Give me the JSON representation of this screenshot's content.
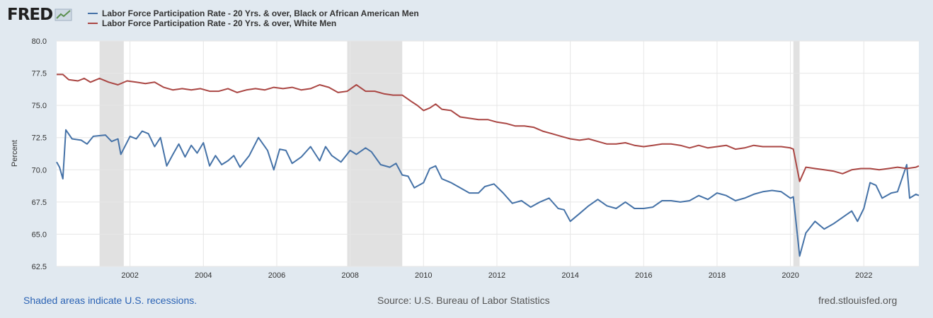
{
  "header": {
    "logo_text": "FRED"
  },
  "colors": {
    "series_black": "#4572a7",
    "series_white": "#aa4643",
    "recession": "#e1e1e1",
    "grid": "#e6e6e6"
  },
  "footer": {
    "recessions_note": "Shaded areas indicate U.S. recessions.",
    "source": "Source: U.S. Bureau of Labor Statistics",
    "site": "fred.stlouisfed.org"
  },
  "chart_data": {
    "type": "line",
    "ylabel": "Percent",
    "ylim": [
      62.5,
      80.0
    ],
    "xlim": [
      2000.0,
      2023.5
    ],
    "y_ticks": [
      "62.5",
      "65.0",
      "67.5",
      "70.0",
      "72.5",
      "75.0",
      "77.5",
      "80.0"
    ],
    "x_ticks": [
      "2002",
      "2004",
      "2006",
      "2008",
      "2010",
      "2012",
      "2014",
      "2016",
      "2018",
      "2020",
      "2022"
    ],
    "grid": true,
    "recessions": [
      [
        2001.17,
        2001.83
      ],
      [
        2007.92,
        2009.42
      ],
      [
        2020.08,
        2020.25
      ]
    ],
    "series": [
      {
        "name": "Labor Force Participation Rate - 20 Yrs. & over, Black or African American Men",
        "points": [
          [
            2000.0,
            70.6
          ],
          [
            2000.08,
            70.2
          ],
          [
            2000.17,
            69.3
          ],
          [
            2000.25,
            73.1
          ],
          [
            2000.42,
            72.4
          ],
          [
            2000.67,
            72.3
          ],
          [
            2000.83,
            72.0
          ],
          [
            2001.0,
            72.6
          ],
          [
            2001.33,
            72.7
          ],
          [
            2001.5,
            72.2
          ],
          [
            2001.67,
            72.4
          ],
          [
            2001.75,
            71.2
          ],
          [
            2002.0,
            72.6
          ],
          [
            2002.17,
            72.4
          ],
          [
            2002.33,
            73.0
          ],
          [
            2002.5,
            72.8
          ],
          [
            2002.67,
            71.8
          ],
          [
            2002.83,
            72.5
          ],
          [
            2003.0,
            70.3
          ],
          [
            2003.17,
            71.2
          ],
          [
            2003.33,
            72.0
          ],
          [
            2003.5,
            71.0
          ],
          [
            2003.67,
            71.9
          ],
          [
            2003.83,
            71.3
          ],
          [
            2004.0,
            72.1
          ],
          [
            2004.17,
            70.3
          ],
          [
            2004.33,
            71.1
          ],
          [
            2004.5,
            70.4
          ],
          [
            2004.67,
            70.7
          ],
          [
            2004.83,
            71.1
          ],
          [
            2005.0,
            70.2
          ],
          [
            2005.25,
            71.1
          ],
          [
            2005.5,
            72.5
          ],
          [
            2005.75,
            71.5
          ],
          [
            2005.92,
            70.0
          ],
          [
            2006.08,
            71.6
          ],
          [
            2006.25,
            71.5
          ],
          [
            2006.42,
            70.5
          ],
          [
            2006.67,
            71.0
          ],
          [
            2006.92,
            71.8
          ],
          [
            2007.17,
            70.7
          ],
          [
            2007.33,
            71.8
          ],
          [
            2007.5,
            71.1
          ],
          [
            2007.75,
            70.6
          ],
          [
            2008.0,
            71.5
          ],
          [
            2008.17,
            71.2
          ],
          [
            2008.42,
            71.7
          ],
          [
            2008.58,
            71.4
          ],
          [
            2008.83,
            70.4
          ],
          [
            2009.08,
            70.2
          ],
          [
            2009.25,
            70.5
          ],
          [
            2009.42,
            69.6
          ],
          [
            2009.58,
            69.5
          ],
          [
            2009.75,
            68.6
          ],
          [
            2010.0,
            69.0
          ],
          [
            2010.17,
            70.1
          ],
          [
            2010.33,
            70.3
          ],
          [
            2010.5,
            69.3
          ],
          [
            2010.75,
            69.0
          ],
          [
            2011.0,
            68.6
          ],
          [
            2011.25,
            68.2
          ],
          [
            2011.5,
            68.2
          ],
          [
            2011.67,
            68.7
          ],
          [
            2011.92,
            68.9
          ],
          [
            2012.17,
            68.2
          ],
          [
            2012.42,
            67.4
          ],
          [
            2012.67,
            67.6
          ],
          [
            2012.92,
            67.1
          ],
          [
            2013.17,
            67.5
          ],
          [
            2013.42,
            67.8
          ],
          [
            2013.67,
            67.0
          ],
          [
            2013.83,
            66.9
          ],
          [
            2014.0,
            66.0
          ],
          [
            2014.25,
            66.6
          ],
          [
            2014.5,
            67.2
          ],
          [
            2014.75,
            67.7
          ],
          [
            2015.0,
            67.2
          ],
          [
            2015.25,
            67.0
          ],
          [
            2015.5,
            67.5
          ],
          [
            2015.75,
            67.0
          ],
          [
            2016.0,
            67.0
          ],
          [
            2016.25,
            67.1
          ],
          [
            2016.5,
            67.6
          ],
          [
            2016.75,
            67.6
          ],
          [
            2017.0,
            67.5
          ],
          [
            2017.25,
            67.6
          ],
          [
            2017.5,
            68.0
          ],
          [
            2017.75,
            67.7
          ],
          [
            2018.0,
            68.2
          ],
          [
            2018.25,
            68.0
          ],
          [
            2018.5,
            67.6
          ],
          [
            2018.75,
            67.8
          ],
          [
            2019.0,
            68.1
          ],
          [
            2019.25,
            68.3
          ],
          [
            2019.5,
            68.4
          ],
          [
            2019.75,
            68.3
          ],
          [
            2020.0,
            67.8
          ],
          [
            2020.08,
            67.9
          ],
          [
            2020.25,
            63.3
          ],
          [
            2020.42,
            65.1
          ],
          [
            2020.67,
            66.0
          ],
          [
            2020.92,
            65.4
          ],
          [
            2021.17,
            65.8
          ],
          [
            2021.42,
            66.3
          ],
          [
            2021.67,
            66.8
          ],
          [
            2021.83,
            66.0
          ],
          [
            2022.0,
            67.0
          ],
          [
            2022.17,
            69.0
          ],
          [
            2022.33,
            68.8
          ],
          [
            2022.5,
            67.8
          ],
          [
            2022.75,
            68.2
          ],
          [
            2022.92,
            68.3
          ],
          [
            2023.17,
            70.4
          ],
          [
            2023.25,
            67.8
          ],
          [
            2023.42,
            68.1
          ],
          [
            2023.5,
            68.0
          ]
        ]
      },
      {
        "name": "Labor Force Participation Rate - 20 Yrs. & over, White Men",
        "points": [
          [
            2000.0,
            77.4
          ],
          [
            2000.17,
            77.4
          ],
          [
            2000.33,
            77.0
          ],
          [
            2000.58,
            76.9
          ],
          [
            2000.75,
            77.1
          ],
          [
            2000.92,
            76.8
          ],
          [
            2001.17,
            77.1
          ],
          [
            2001.42,
            76.8
          ],
          [
            2001.67,
            76.6
          ],
          [
            2001.92,
            76.9
          ],
          [
            2002.17,
            76.8
          ],
          [
            2002.42,
            76.7
          ],
          [
            2002.67,
            76.8
          ],
          [
            2002.92,
            76.4
          ],
          [
            2003.17,
            76.2
          ],
          [
            2003.42,
            76.3
          ],
          [
            2003.67,
            76.2
          ],
          [
            2003.92,
            76.3
          ],
          [
            2004.17,
            76.1
          ],
          [
            2004.42,
            76.1
          ],
          [
            2004.67,
            76.3
          ],
          [
            2004.92,
            76.0
          ],
          [
            2005.17,
            76.2
          ],
          [
            2005.42,
            76.3
          ],
          [
            2005.67,
            76.2
          ],
          [
            2005.92,
            76.4
          ],
          [
            2006.17,
            76.3
          ],
          [
            2006.42,
            76.4
          ],
          [
            2006.67,
            76.2
          ],
          [
            2006.92,
            76.3
          ],
          [
            2007.17,
            76.6
          ],
          [
            2007.42,
            76.4
          ],
          [
            2007.67,
            76.0
          ],
          [
            2007.92,
            76.1
          ],
          [
            2008.17,
            76.6
          ],
          [
            2008.42,
            76.1
          ],
          [
            2008.67,
            76.1
          ],
          [
            2008.92,
            75.9
          ],
          [
            2009.17,
            75.8
          ],
          [
            2009.42,
            75.8
          ],
          [
            2009.67,
            75.3
          ],
          [
            2009.83,
            75.0
          ],
          [
            2010.0,
            74.6
          ],
          [
            2010.17,
            74.8
          ],
          [
            2010.33,
            75.1
          ],
          [
            2010.5,
            74.7
          ],
          [
            2010.75,
            74.6
          ],
          [
            2011.0,
            74.1
          ],
          [
            2011.25,
            74.0
          ],
          [
            2011.5,
            73.9
          ],
          [
            2011.75,
            73.9
          ],
          [
            2012.0,
            73.7
          ],
          [
            2012.25,
            73.6
          ],
          [
            2012.5,
            73.4
          ],
          [
            2012.75,
            73.4
          ],
          [
            2013.0,
            73.3
          ],
          [
            2013.25,
            73.0
          ],
          [
            2013.5,
            72.8
          ],
          [
            2013.75,
            72.6
          ],
          [
            2014.0,
            72.4
          ],
          [
            2014.25,
            72.3
          ],
          [
            2014.5,
            72.4
          ],
          [
            2014.75,
            72.2
          ],
          [
            2015.0,
            72.0
          ],
          [
            2015.25,
            72.0
          ],
          [
            2015.5,
            72.1
          ],
          [
            2015.75,
            71.9
          ],
          [
            2016.0,
            71.8
          ],
          [
            2016.25,
            71.9
          ],
          [
            2016.5,
            72.0
          ],
          [
            2016.75,
            72.0
          ],
          [
            2017.0,
            71.9
          ],
          [
            2017.25,
            71.7
          ],
          [
            2017.5,
            71.9
          ],
          [
            2017.75,
            71.7
          ],
          [
            2018.0,
            71.8
          ],
          [
            2018.25,
            71.9
          ],
          [
            2018.5,
            71.6
          ],
          [
            2018.75,
            71.7
          ],
          [
            2019.0,
            71.9
          ],
          [
            2019.25,
            71.8
          ],
          [
            2019.5,
            71.8
          ],
          [
            2019.75,
            71.8
          ],
          [
            2020.0,
            71.7
          ],
          [
            2020.08,
            71.6
          ],
          [
            2020.25,
            69.1
          ],
          [
            2020.42,
            70.2
          ],
          [
            2020.67,
            70.1
          ],
          [
            2020.92,
            70.0
          ],
          [
            2021.17,
            69.9
          ],
          [
            2021.42,
            69.7
          ],
          [
            2021.67,
            70.0
          ],
          [
            2021.92,
            70.1
          ],
          [
            2022.17,
            70.1
          ],
          [
            2022.42,
            70.0
          ],
          [
            2022.67,
            70.1
          ],
          [
            2022.92,
            70.2
          ],
          [
            2023.17,
            70.1
          ],
          [
            2023.42,
            70.2
          ],
          [
            2023.5,
            70.3
          ]
        ]
      }
    ]
  }
}
